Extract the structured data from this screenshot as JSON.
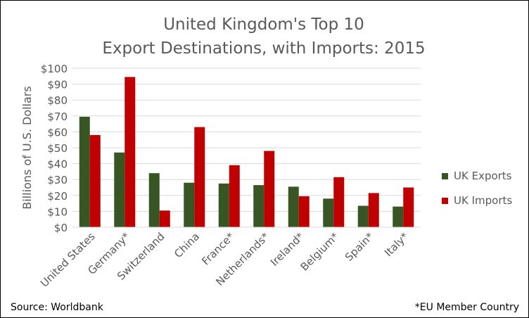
{
  "chart_data": {
    "type": "bar",
    "title_line1": "United Kingdom's Top 10",
    "title_line2": "Export Destinations, with Imports: 2015",
    "xlabel": "",
    "ylabel": "Billions of U.S. Dollars",
    "ylim": [
      0,
      100
    ],
    "yticks": [
      "$0",
      "$10",
      "$20",
      "$30",
      "$40",
      "$50",
      "$60",
      "$70",
      "$80",
      "$90",
      "$100"
    ],
    "grid": true,
    "legend_position": "right",
    "categories": [
      "United States",
      "Germany*",
      "Switzerland",
      "China",
      "France*",
      "Netherlands*",
      "Ireland*",
      "Belgium*",
      "Spain*",
      "Italy*"
    ],
    "series": [
      {
        "name": "UK Exports",
        "color": "#375623",
        "values": [
          69.5,
          47,
          34,
          28,
          27.5,
          26.5,
          25.5,
          18,
          13.5,
          13
        ]
      },
      {
        "name": "UK Imports",
        "color": "#c00000",
        "values": [
          58,
          94.5,
          10.5,
          63,
          39,
          48,
          19.5,
          31.5,
          21.5,
          25
        ]
      }
    ]
  },
  "source": "Source: Worldbank",
  "footnote": "*EU Member Country"
}
